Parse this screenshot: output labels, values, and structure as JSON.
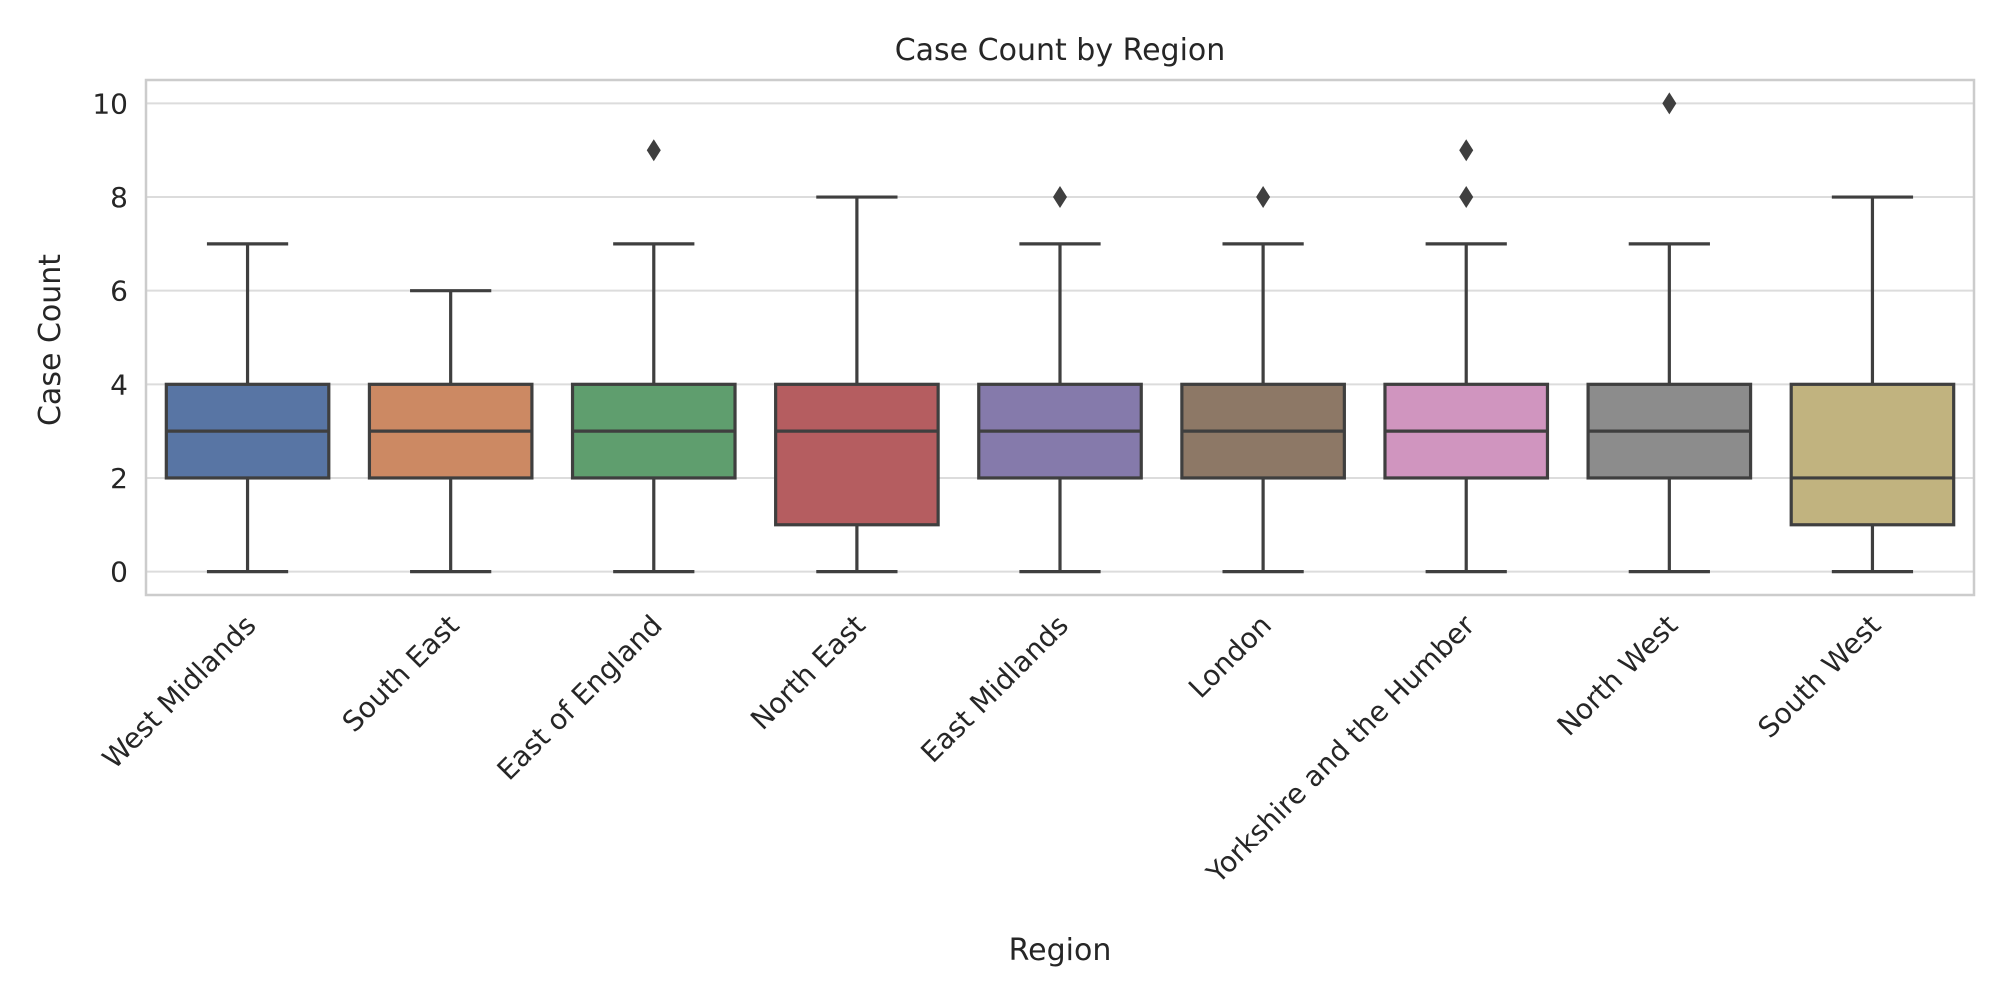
{
  "chart_data": {
    "type": "box",
    "title": "Case Count by Region",
    "xlabel": "Region",
    "ylabel": "Case Count",
    "ylim": [
      -0.5,
      10.5
    ],
    "yticks": [
      0,
      2,
      4,
      6,
      8,
      10
    ],
    "grid": true,
    "categories": [
      "West Midlands",
      "South East",
      "East of England",
      "North East",
      "East Midlands",
      "London",
      "Yorkshire and the Humber",
      "North West",
      "South West"
    ],
    "boxes": [
      {
        "min": 0,
        "q1": 2,
        "median": 3,
        "q3": 4,
        "max": 7,
        "outliers": [],
        "color": "#5875a4"
      },
      {
        "min": 0,
        "q1": 2,
        "median": 3,
        "q3": 4,
        "max": 6,
        "outliers": [],
        "color": "#cc8963"
      },
      {
        "min": 0,
        "q1": 2,
        "median": 3,
        "q3": 4,
        "max": 7,
        "outliers": [
          9
        ],
        "color": "#5f9e6e"
      },
      {
        "min": 0,
        "q1": 1,
        "median": 3,
        "q3": 4,
        "max": 8,
        "outliers": [],
        "color": "#b55d60"
      },
      {
        "min": 0,
        "q1": 2,
        "median": 3,
        "q3": 4,
        "max": 7,
        "outliers": [
          8
        ],
        "color": "#857aab"
      },
      {
        "min": 0,
        "q1": 2,
        "median": 3,
        "q3": 4,
        "max": 7,
        "outliers": [
          8
        ],
        "color": "#8d7866"
      },
      {
        "min": 0,
        "q1": 2,
        "median": 3,
        "q3": 4,
        "max": 7,
        "outliers": [
          8,
          9
        ],
        "color": "#d095bf"
      },
      {
        "min": 0,
        "q1": 2,
        "median": 3,
        "q3": 4,
        "max": 7,
        "outliers": [
          10
        ],
        "color": "#8c8c8c"
      },
      {
        "min": 0,
        "q1": 1,
        "median": 2,
        "q3": 4,
        "max": 8,
        "outliers": [],
        "color": "#c1b37f"
      }
    ]
  }
}
